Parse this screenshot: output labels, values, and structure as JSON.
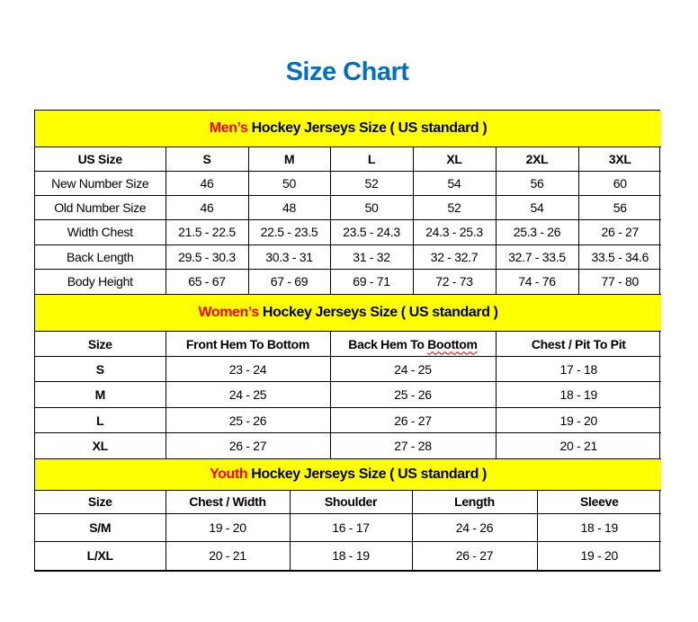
{
  "title": "Size Chart",
  "colors": {
    "title": "#0070C0",
    "header_bg": "#FFFF00",
    "accent": "#FF0000"
  },
  "sections": [
    {
      "id": "men",
      "accent": "Men’s",
      "heading": " Hockey Jerseys Size ( US standard )",
      "columns": [
        "US Size",
        "S",
        "M",
        "L",
        "XL",
        "2XL",
        "3XL"
      ],
      "rows": [
        [
          "New Number Size",
          "46",
          "50",
          "52",
          "54",
          "56",
          "60"
        ],
        [
          "Old Number Size",
          "46",
          "48",
          "50",
          "52",
          "54",
          "56"
        ],
        [
          "Width Chest",
          "21.5 - 22.5",
          "22.5 - 23.5",
          "23.5 - 24.3",
          "24.3 - 25.3",
          "25.3 - 26",
          "26 - 27"
        ],
        [
          "Back Length",
          "29.5 - 30.3",
          "30.3 - 31",
          "31 - 32",
          "32 - 32.7",
          "32.7 - 33.5",
          "33.5 - 34.6"
        ],
        [
          "Body Height",
          "65 - 67",
          "67 - 69",
          "69 - 71",
          "72 - 73",
          "74 - 76",
          "77 - 80"
        ]
      ]
    },
    {
      "id": "women",
      "accent": "Women’s",
      "heading": " Hockey Jerseys Size ( US standard )",
      "columns": [
        "Size",
        "Front Hem To Bottom",
        "Back Hem To Boottom",
        "Chest / Pit To Pit"
      ],
      "rows": [
        [
          "S",
          "23 - 24",
          "24 - 25",
          "17 - 18"
        ],
        [
          "M",
          "24 - 25",
          "25 - 26",
          "18 - 19"
        ],
        [
          "L",
          "25 - 26",
          "26 - 27",
          "19 - 20"
        ],
        [
          "XL",
          "26 - 27",
          "27 - 28",
          "20 - 21"
        ]
      ]
    },
    {
      "id": "youth",
      "accent": "Youth",
      "heading": " Hockey Jerseys Size ( US standard )",
      "columns": [
        "Size",
        "Chest / Width",
        "Shoulder",
        "Length",
        "Sleeve"
      ],
      "rows": [
        [
          "S/M",
          "19 - 20",
          "16 - 17",
          "24 - 26",
          "18 - 19"
        ],
        [
          "L/XL",
          "20 - 21",
          "18 - 19",
          "26 - 27",
          "19 - 20"
        ]
      ]
    }
  ]
}
